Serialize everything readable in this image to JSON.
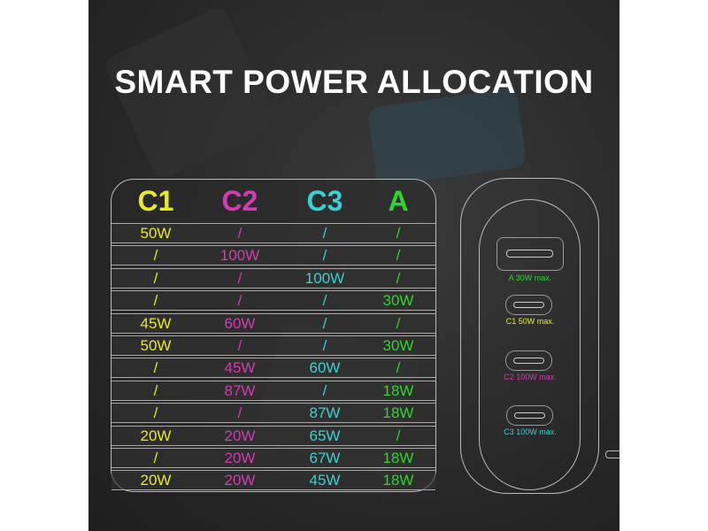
{
  "title": "SMART POWER ALLOCATION",
  "colors": {
    "C1": "#e8e82c",
    "C2": "#d23cb3",
    "C3": "#3ccfd4",
    "A": "#2fd42f"
  },
  "table": {
    "headers": [
      "C1",
      "C2",
      "C3",
      "A"
    ],
    "rows": [
      [
        "50W",
        "/",
        "/",
        "/"
      ],
      [
        "/",
        "100W",
        "/",
        "/"
      ],
      [
        "/",
        "/",
        "100W",
        "/"
      ],
      [
        "/",
        "/",
        "/",
        "30W"
      ],
      [
        "45W",
        "60W",
        "/",
        "/"
      ],
      [
        "50W",
        "/",
        "/",
        "30W"
      ],
      [
        "/",
        "45W",
        "60W",
        "/"
      ],
      [
        "/",
        "87W",
        "/",
        "18W"
      ],
      [
        "/",
        "/",
        "87W",
        "18W"
      ],
      [
        "20W",
        "20W",
        "65W",
        "/"
      ],
      [
        "/",
        "20W",
        "67W",
        "18W"
      ],
      [
        "20W",
        "20W",
        "45W",
        "18W"
      ]
    ]
  },
  "charger": {
    "ports": [
      {
        "label": "A 30W max.",
        "type": "usb-a-port"
      },
      {
        "label": "C1 50W max.",
        "type": "usb-c-port"
      },
      {
        "label": "C2 100W max.",
        "type": "usb-c-port"
      },
      {
        "label": "C3 100W max.",
        "type": "usb-c-port"
      }
    ]
  }
}
